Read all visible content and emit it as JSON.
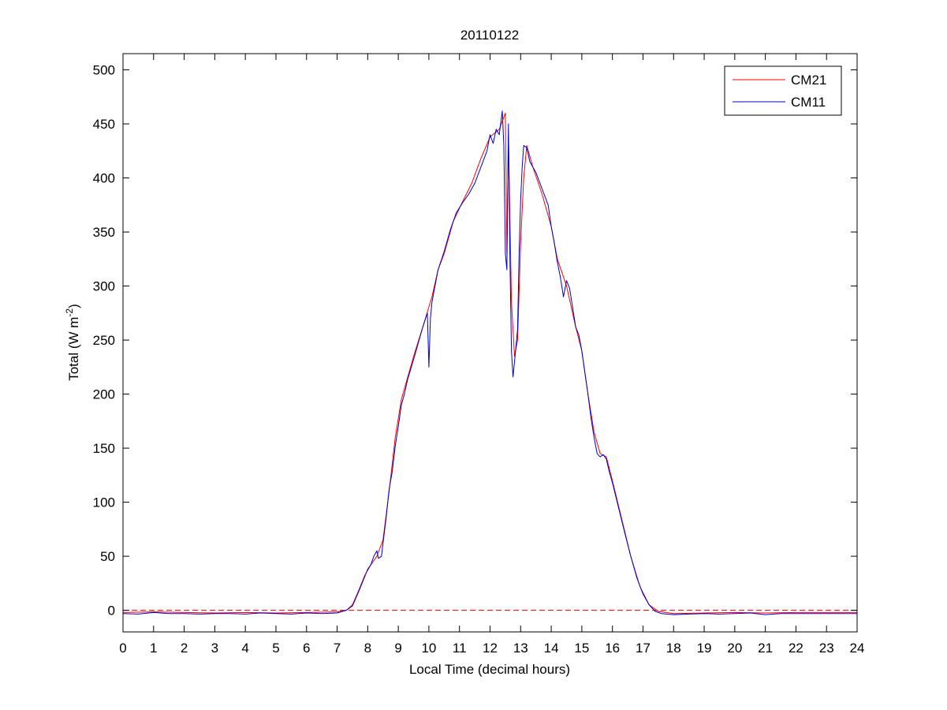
{
  "chart_data": {
    "type": "line",
    "title": "20110122",
    "xlabel": "Local Time (decimal hours)",
    "ylabel_main": "Total (W m",
    "ylabel_sup": "-2",
    "ylabel_end": ")",
    "xlim": [
      0,
      24
    ],
    "ylim": [
      -20,
      515
    ],
    "xticks": [
      0,
      1,
      2,
      3,
      4,
      5,
      6,
      7,
      8,
      9,
      10,
      11,
      12,
      13,
      14,
      15,
      16,
      17,
      18,
      19,
      20,
      21,
      22,
      23,
      24
    ],
    "yticks": [
      0,
      50,
      100,
      150,
      200,
      250,
      300,
      350,
      400,
      450,
      500
    ],
    "grid": false,
    "legend_position": "top-right",
    "zero_line": {
      "y": 0,
      "color": "#e00000",
      "style": "dashed"
    },
    "series": [
      {
        "name": "CM21",
        "color": "#ff0000",
        "points": [
          [
            0,
            -2
          ],
          [
            1,
            -1.5
          ],
          [
            2,
            -2
          ],
          [
            3,
            -2.5
          ],
          [
            4,
            -2
          ],
          [
            5,
            -2.5
          ],
          [
            6,
            -2
          ],
          [
            7,
            -1.5
          ],
          [
            7.3,
            0
          ],
          [
            7.5,
            5
          ],
          [
            7.7,
            18
          ],
          [
            7.9,
            32
          ],
          [
            8.1,
            42
          ],
          [
            8.3,
            50
          ],
          [
            8.5,
            65
          ],
          [
            8.7,
            110
          ],
          [
            8.9,
            160
          ],
          [
            9.1,
            195
          ],
          [
            9.3,
            215
          ],
          [
            9.5,
            235
          ],
          [
            9.8,
            262
          ],
          [
            10.1,
            290
          ],
          [
            10.3,
            315
          ],
          [
            10.5,
            330
          ],
          [
            10.8,
            360
          ],
          [
            11.1,
            378
          ],
          [
            11.4,
            395
          ],
          [
            11.7,
            418
          ],
          [
            12.0,
            438
          ],
          [
            12.3,
            445
          ],
          [
            12.5,
            460
          ],
          [
            12.55,
            330
          ],
          [
            12.6,
            440
          ],
          [
            12.7,
            285
          ],
          [
            12.8,
            235
          ],
          [
            12.9,
            250
          ],
          [
            13.0,
            340
          ],
          [
            13.1,
            400
          ],
          [
            13.2,
            430
          ],
          [
            13.4,
            410
          ],
          [
            13.7,
            385
          ],
          [
            14.0,
            355
          ],
          [
            14.2,
            325
          ],
          [
            14.5,
            300
          ],
          [
            14.8,
            262
          ],
          [
            15.0,
            240
          ],
          [
            15.2,
            200
          ],
          [
            15.4,
            165
          ],
          [
            15.6,
            145
          ],
          [
            15.8,
            142
          ],
          [
            16.0,
            120
          ],
          [
            16.3,
            85
          ],
          [
            16.6,
            50
          ],
          [
            16.9,
            22
          ],
          [
            17.2,
            5
          ],
          [
            17.5,
            -1
          ],
          [
            18,
            -3
          ],
          [
            19,
            -2.5
          ],
          [
            20,
            -2
          ],
          [
            21,
            -2.5
          ],
          [
            22,
            -2
          ],
          [
            23,
            -2
          ],
          [
            24,
            -2
          ]
        ]
      },
      {
        "name": "CM11",
        "color": "#0000cc",
        "points": [
          [
            0,
            -3
          ],
          [
            0.5,
            -3.5
          ],
          [
            1,
            -2
          ],
          [
            1.5,
            -3
          ],
          [
            2,
            -3
          ],
          [
            2.5,
            -3.5
          ],
          [
            3,
            -3
          ],
          [
            3.5,
            -3
          ],
          [
            4,
            -3.5
          ],
          [
            4.5,
            -2.5
          ],
          [
            5,
            -3
          ],
          [
            5.5,
            -3.5
          ],
          [
            6,
            -2.5
          ],
          [
            6.5,
            -3
          ],
          [
            7,
            -2.5
          ],
          [
            7.3,
            0
          ],
          [
            7.5,
            4
          ],
          [
            7.7,
            17
          ],
          [
            7.9,
            31
          ],
          [
            8.0,
            38
          ],
          [
            8.1,
            42
          ],
          [
            8.2,
            50
          ],
          [
            8.3,
            55
          ],
          [
            8.35,
            48
          ],
          [
            8.45,
            50
          ],
          [
            8.5,
            62
          ],
          [
            8.6,
            85
          ],
          [
            8.7,
            112
          ],
          [
            8.8,
            128
          ],
          [
            8.9,
            152
          ],
          [
            9.0,
            170
          ],
          [
            9.1,
            190
          ],
          [
            9.2,
            200
          ],
          [
            9.3,
            213
          ],
          [
            9.5,
            232
          ],
          [
            9.7,
            252
          ],
          [
            9.8,
            262
          ],
          [
            9.95,
            275
          ],
          [
            10.0,
            225
          ],
          [
            10.05,
            270
          ],
          [
            10.1,
            285
          ],
          [
            10.2,
            300
          ],
          [
            10.3,
            315
          ],
          [
            10.5,
            332
          ],
          [
            10.7,
            352
          ],
          [
            10.9,
            368
          ],
          [
            11.1,
            377
          ],
          [
            11.3,
            385
          ],
          [
            11.5,
            395
          ],
          [
            11.7,
            410
          ],
          [
            11.9,
            425
          ],
          [
            12.0,
            440
          ],
          [
            12.1,
            432
          ],
          [
            12.2,
            445
          ],
          [
            12.3,
            440
          ],
          [
            12.4,
            462
          ],
          [
            12.45,
            430
          ],
          [
            12.5,
            330
          ],
          [
            12.55,
            315
          ],
          [
            12.6,
            450
          ],
          [
            12.65,
            325
          ],
          [
            12.7,
            240
          ],
          [
            12.75,
            216
          ],
          [
            12.8,
            230
          ],
          [
            12.85,
            245
          ],
          [
            12.9,
            260
          ],
          [
            12.95,
            330
          ],
          [
            13.0,
            380
          ],
          [
            13.05,
            410
          ],
          [
            13.1,
            430
          ],
          [
            13.2,
            428
          ],
          [
            13.3,
            415
          ],
          [
            13.5,
            405
          ],
          [
            13.7,
            390
          ],
          [
            13.9,
            375
          ],
          [
            14.0,
            355
          ],
          [
            14.1,
            340
          ],
          [
            14.2,
            322
          ],
          [
            14.3,
            308
          ],
          [
            14.4,
            290
          ],
          [
            14.5,
            305
          ],
          [
            14.6,
            298
          ],
          [
            14.7,
            280
          ],
          [
            14.8,
            262
          ],
          [
            14.9,
            255
          ],
          [
            15.0,
            240
          ],
          [
            15.1,
            220
          ],
          [
            15.2,
            200
          ],
          [
            15.3,
            178
          ],
          [
            15.4,
            160
          ],
          [
            15.5,
            145
          ],
          [
            15.6,
            142
          ],
          [
            15.7,
            144
          ],
          [
            15.8,
            140
          ],
          [
            15.9,
            128
          ],
          [
            16.0,
            118
          ],
          [
            16.2,
            95
          ],
          [
            16.4,
            72
          ],
          [
            16.6,
            50
          ],
          [
            16.8,
            30
          ],
          [
            17.0,
            15
          ],
          [
            17.2,
            5
          ],
          [
            17.4,
            -1
          ],
          [
            17.6,
            -3
          ],
          [
            18,
            -4
          ],
          [
            18.5,
            -3.5
          ],
          [
            19,
            -3
          ],
          [
            19.5,
            -3.5
          ],
          [
            20,
            -3
          ],
          [
            20.5,
            -2.5
          ],
          [
            21,
            -4
          ],
          [
            21.5,
            -3
          ],
          [
            22,
            -3
          ],
          [
            22.5,
            -3
          ],
          [
            23,
            -3
          ],
          [
            23.5,
            -3
          ],
          [
            24,
            -3
          ]
        ]
      }
    ]
  }
}
